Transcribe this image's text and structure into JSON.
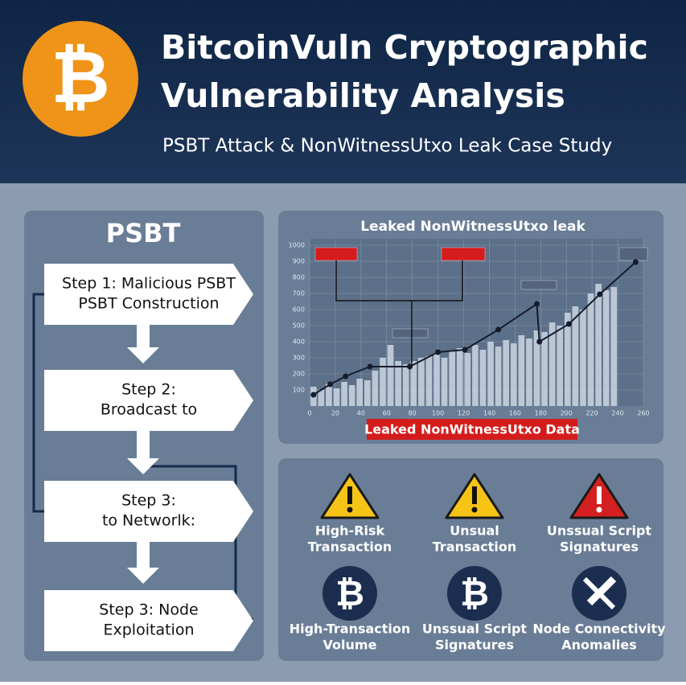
{
  "header": {
    "logo_symbol": "₿",
    "title_lines": [
      "BitcoinVuln Cryptographic",
      "Vulnerability Analysis"
    ],
    "subtitle": "PSBT Attack & NonWitnessUtxo Leak Case Study"
  },
  "flow": {
    "title": "PSBT",
    "steps": [
      [
        "Step 1: Malicious PSBT",
        "PSBT Construction"
      ],
      [
        "Step 2:",
        "Broadcast to"
      ],
      [
        "Step 3:",
        "to Networlk:"
      ],
      [
        "Step 3: Node",
        "Exploitation"
      ]
    ]
  },
  "chart_data": {
    "type": "bar",
    "title": "Leaked NonWitnessUtxo leak",
    "caption": "Leaked NonWitnessUtxo Data",
    "xlim": [
      0,
      260
    ],
    "xticks": [
      0,
      20,
      40,
      60,
      80,
      100,
      120,
      140,
      160,
      180,
      200,
      220,
      240,
      260
    ],
    "ylim": [
      0,
      1000
    ],
    "yticks": [
      100,
      200,
      300,
      400,
      500,
      600,
      700,
      800,
      900,
      1000
    ],
    "grid": true,
    "bars": {
      "color": "#cdd6e3",
      "x": [
        3,
        9,
        15,
        21,
        27,
        33,
        39,
        45,
        51,
        57,
        63,
        69,
        75,
        81,
        87,
        93,
        99,
        105,
        111,
        117,
        123,
        129,
        135,
        141,
        147,
        153,
        159,
        165,
        171,
        177,
        183,
        189,
        195,
        201,
        207,
        213,
        219,
        225,
        231,
        237
      ],
      "values": [
        120,
        100,
        140,
        110,
        150,
        130,
        170,
        160,
        220,
        300,
        380,
        280,
        260,
        280,
        300,
        310,
        330,
        300,
        340,
        360,
        330,
        380,
        350,
        400,
        370,
        410,
        390,
        440,
        420,
        470,
        460,
        520,
        500,
        580,
        620,
        600,
        700,
        760,
        720,
        740
      ]
    },
    "line": {
      "color": "#161c2c",
      "x": [
        3,
        16,
        28,
        47,
        78,
        100,
        121,
        147,
        177,
        179,
        202,
        226,
        254
      ],
      "values": [
        70,
        135,
        185,
        245,
        245,
        335,
        350,
        475,
        635,
        400,
        510,
        695,
        895
      ]
    }
  },
  "indicators": [
    {
      "label": [
        "High-Risk",
        "Transaction"
      ]
    },
    {
      "label": [
        "Unsual",
        "Transaction"
      ]
    },
    {
      "label": [
        "Unssual Script",
        "Signatures"
      ]
    },
    {
      "symbol": "₿",
      "label": [
        "High-Transaction",
        "Volume"
      ]
    },
    {
      "symbol": "₿",
      "label": [
        "Unssual Script",
        "Signatures"
      ]
    },
    {
      "label": [
        "Node Connectivity",
        "Anomalies"
      ]
    }
  ]
}
